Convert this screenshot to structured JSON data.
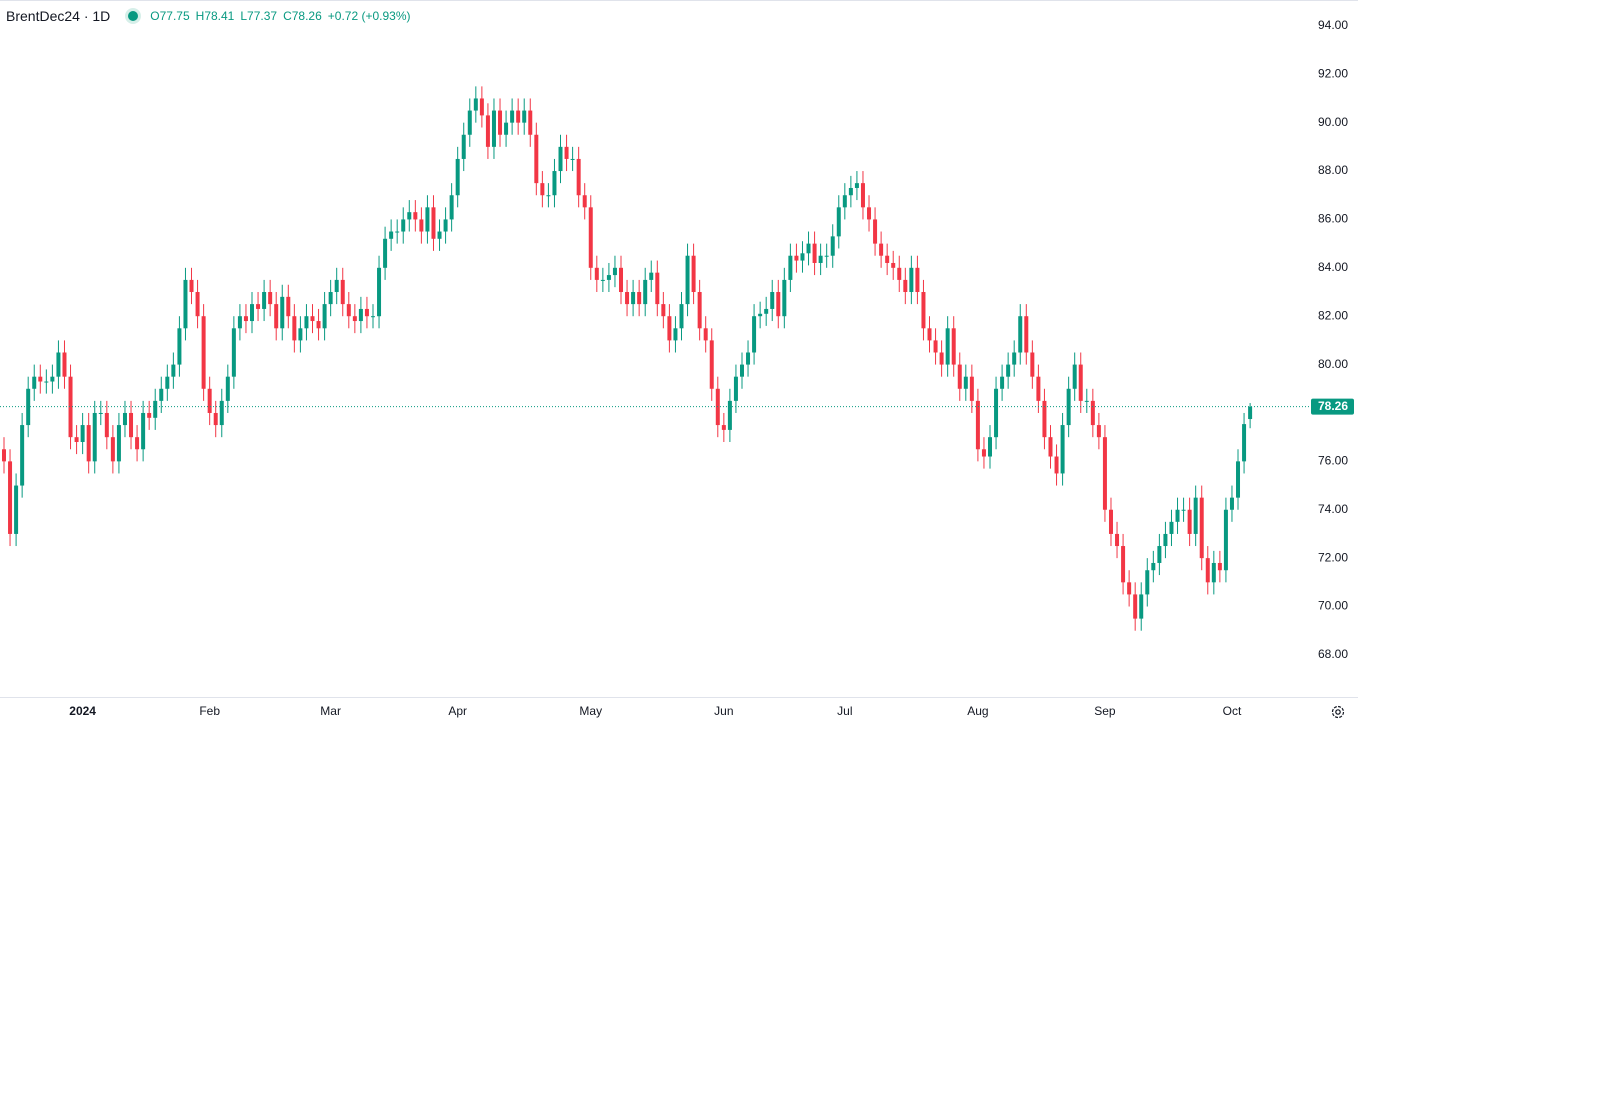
{
  "chart_data": {
    "type": "candlestick",
    "title": "BrentDec24 · 1D",
    "ohlc": [
      "O77.75",
      "H78.41",
      "L77.37",
      "C78.26"
    ],
    "change": "+0.72 (+0.93%)",
    "up_color": "#089981",
    "down_color": "#f23645",
    "last_price": 78.26,
    "ylim": [
      66.26,
      95.07
    ],
    "yticks": [
      {
        "value": 68,
        "label": "68.00"
      },
      {
        "value": 70,
        "label": "70.00"
      },
      {
        "value": 72,
        "label": "72.00"
      },
      {
        "value": 74,
        "label": "74.00"
      },
      {
        "value": 76,
        "label": "76.00"
      },
      {
        "value": 80,
        "label": "80.00"
      },
      {
        "value": 82,
        "label": "82.00"
      },
      {
        "value": 84,
        "label": "84.00"
      },
      {
        "value": 86,
        "label": "86.00"
      },
      {
        "value": 88,
        "label": "88.00"
      },
      {
        "value": 90,
        "label": "90.00"
      },
      {
        "value": 92,
        "label": "92.00"
      },
      {
        "value": 94,
        "label": "94.00"
      }
    ],
    "xlim": [
      -0.66,
      215.9
    ],
    "xticks": [
      {
        "value": 13,
        "label": "2024"
      },
      {
        "value": 34,
        "label": "Feb"
      },
      {
        "value": 54,
        "label": "Mar"
      },
      {
        "value": 75,
        "label": "Apr"
      },
      {
        "value": 97,
        "label": "May"
      },
      {
        "value": 119,
        "label": "Jun"
      },
      {
        "value": 139,
        "label": "Jul"
      },
      {
        "value": 161,
        "label": "Aug"
      },
      {
        "value": 182,
        "label": "Sep"
      },
      {
        "value": 203,
        "label": "Oct"
      }
    ],
    "open": [
      76.5,
      76,
      73,
      75,
      77.5,
      79,
      79.5,
      79.3,
      79.3,
      79.5,
      80.5,
      79.5,
      77,
      76.8,
      77.5,
      76,
      78,
      78,
      77,
      76,
      77.5,
      78,
      77,
      76.5,
      78,
      77.8,
      78.5,
      79,
      79.5,
      80,
      81.5,
      83.5,
      83,
      82,
      79,
      78,
      77.5,
      78.5,
      79.5,
      81.5,
      82,
      81.8,
      82.5,
      82.3,
      83,
      82.5,
      81.5,
      82.8,
      82,
      81,
      81.5,
      82,
      81.8,
      81.5,
      82.5,
      83,
      83.5,
      82.5,
      82,
      81.8,
      82.3,
      82,
      82,
      84,
      85.2,
      85.5,
      85.5,
      86,
      86.3,
      86,
      85.5,
      86.5,
      85.2,
      85.5,
      86,
      87,
      88.5,
      89.5,
      90.5,
      91,
      90.3,
      89,
      90.5,
      89.5,
      90,
      90.5,
      90,
      90.5,
      89.5,
      87.5,
      87,
      87,
      88,
      89,
      88.5,
      88.5,
      87,
      86.5,
      84,
      83.5,
      83.5,
      83.7,
      84,
      83,
      82.5,
      83,
      82.5,
      83.5,
      83.8,
      82.5,
      82,
      81,
      81.5,
      82.5,
      84.5,
      83,
      81.5,
      81,
      79,
      77.5,
      77.3,
      78.5,
      79.5,
      80,
      80.5,
      82,
      82.1,
      82.3,
      83,
      82,
      83.5,
      84.5,
      84.3,
      84.6,
      85,
      84.2,
      84.5,
      84.5,
      85.3,
      86.5,
      87,
      87.3,
      87.5,
      86.5,
      86,
      85,
      84.5,
      84.2,
      84,
      83.5,
      83,
      84,
      83,
      81.5,
      81,
      80.5,
      80,
      81.5,
      80,
      79,
      79.5,
      78.5,
      76.5,
      76.2,
      77,
      79,
      79.5,
      80,
      80.5,
      82,
      80.5,
      79.5,
      78.5,
      77,
      76.2,
      75.5,
      77.5,
      79,
      80,
      78.5,
      78.5,
      77.5,
      77,
      74,
      73,
      72.5,
      71,
      70.5,
      69.5,
      70.5,
      71.5,
      71.8,
      72.5,
      73,
      73.5,
      74,
      74,
      73,
      74.5,
      72,
      71,
      71.8,
      71.5,
      74,
      74.5,
      76,
      77.75
    ],
    "high": [
      77,
      76.5,
      75.5,
      78,
      79.5,
      80,
      80,
      79.8,
      80,
      81,
      81,
      80,
      77.5,
      78,
      78,
      78.5,
      78.5,
      78.5,
      77.5,
      78,
      78.5,
      78.5,
      77.5,
      78.5,
      78.5,
      79,
      79.5,
      80,
      80.5,
      82,
      84,
      84,
      83.5,
      82.5,
      79.5,
      78.5,
      79,
      80,
      82,
      82.5,
      82.5,
      83,
      83,
      83.5,
      83.5,
      83,
      83.3,
      83.3,
      82.5,
      82,
      82.5,
      82.5,
      82.3,
      83,
      83.5,
      84,
      84,
      83,
      82.5,
      82.8,
      82.8,
      82.5,
      84.5,
      85.7,
      86,
      86,
      86.5,
      86.8,
      86.8,
      86.5,
      87,
      87,
      86,
      86.5,
      87.5,
      89,
      90,
      91,
      91.5,
      91.5,
      90.8,
      91,
      91,
      90.5,
      91,
      91,
      91,
      91,
      90,
      88,
      87.5,
      88.5,
      89.5,
      89.5,
      89,
      89,
      87.5,
      87,
      84.5,
      84,
      84.2,
      84.5,
      84.5,
      83.5,
      83.5,
      83.5,
      84,
      84.3,
      84.3,
      83,
      82.5,
      82,
      83,
      85,
      85,
      83.5,
      82,
      81.5,
      79.5,
      78,
      79,
      80,
      80.5,
      81,
      82.5,
      82.6,
      82.8,
      83.5,
      83.5,
      84,
      85,
      85,
      85.1,
      85.5,
      85.5,
      85,
      85,
      85.8,
      87,
      87.5,
      87.8,
      88,
      88,
      87,
      86.5,
      85.5,
      85,
      84.7,
      84.5,
      84,
      84.5,
      84.5,
      83.5,
      82,
      81.5,
      81,
      82,
      82,
      80.5,
      80,
      80,
      79,
      77,
      77.5,
      79.5,
      80,
      80.5,
      81,
      82.5,
      82.5,
      81,
      80,
      79,
      77.5,
      76.7,
      78,
      79.5,
      80.5,
      80.5,
      79,
      79,
      78,
      77.5,
      74.5,
      73.5,
      73,
      71.5,
      71,
      71,
      72,
      72.3,
      73,
      73.5,
      74,
      74.5,
      74.5,
      74.5,
      75,
      75,
      72.5,
      72.3,
      72.3,
      74.5,
      75,
      76.5,
      78,
      78.41
    ],
    "low": [
      75.5,
      72.5,
      72.5,
      74.5,
      77,
      78.5,
      78.8,
      78.8,
      78.8,
      79,
      79,
      76.5,
      76.3,
      76.3,
      75.5,
      75.5,
      77.5,
      76.5,
      75.5,
      75.5,
      77,
      76.5,
      76,
      76,
      77.3,
      77.3,
      78,
      78.5,
      79,
      79.5,
      81,
      82.5,
      81.5,
      78.5,
      77.5,
      77,
      77,
      78,
      79,
      81,
      81.3,
      81.3,
      81.8,
      81.8,
      82,
      81,
      81,
      81.5,
      80.5,
      80.5,
      81,
      81.3,
      81,
      81,
      82,
      82.5,
      82,
      81.5,
      81.3,
      81.3,
      81.5,
      81.5,
      81.5,
      83.5,
      84.7,
      85,
      85,
      85.5,
      85.5,
      85,
      85,
      84.7,
      84.7,
      85,
      85.5,
      86.5,
      88,
      89,
      90,
      89.8,
      88.5,
      88.5,
      89,
      89,
      89.5,
      89.5,
      89.5,
      89,
      87,
      86.5,
      86.5,
      86.5,
      87.5,
      88,
      88,
      86.5,
      86,
      83.5,
      83,
      83,
      83,
      83.2,
      82.5,
      82,
      82,
      82,
      82,
      83,
      82,
      81.5,
      80.5,
      80.5,
      81,
      82,
      82.5,
      81,
      80.5,
      78.5,
      77,
      76.8,
      76.8,
      78,
      79,
      79.5,
      80,
      81.5,
      81.6,
      81.8,
      81.5,
      81.5,
      83,
      83.8,
      83.8,
      84.1,
      83.7,
      83.7,
      84,
      84,
      84.8,
      86,
      86.5,
      86.8,
      86,
      85.5,
      84.5,
      84,
      83.7,
      83.5,
      83,
      82.5,
      82.5,
      82.5,
      81,
      80.5,
      80,
      79.5,
      79.5,
      79.5,
      78.5,
      78.5,
      78,
      76,
      75.7,
      75.7,
      76.5,
      78.5,
      79,
      79.5,
      80,
      80,
      79,
      78,
      76.5,
      75.7,
      75,
      75,
      77,
      78.5,
      78,
      78,
      77,
      76.5,
      73.5,
      72.5,
      72,
      70.5,
      70,
      69,
      69,
      70,
      71,
      71.3,
      72,
      72.5,
      73,
      73.5,
      72.5,
      72.5,
      71.5,
      70.5,
      70.5,
      71,
      71,
      73.5,
      74,
      75.5,
      77.37
    ],
    "close": [
      76,
      73,
      75,
      77.5,
      79,
      79.5,
      79.3,
      79.3,
      79.5,
      80.5,
      79.5,
      77,
      76.8,
      77.5,
      76,
      78,
      78,
      77,
      76,
      77.5,
      78,
      77,
      76.5,
      78,
      77.8,
      78.5,
      79,
      79.5,
      80,
      81.5,
      83.5,
      83,
      82,
      79,
      78,
      77.5,
      78.5,
      79.5,
      81.5,
      82,
      81.8,
      82.5,
      82.3,
      83,
      82.5,
      81.5,
      82.8,
      82,
      81,
      81.5,
      82,
      81.8,
      81.5,
      82.5,
      83,
      83.5,
      82.5,
      82,
      81.8,
      82.3,
      82,
      82,
      84,
      85.2,
      85.5,
      85.5,
      86,
      86.3,
      86,
      85.5,
      86.5,
      85.2,
      85.5,
      86,
      87,
      88.5,
      89.5,
      90.5,
      91,
      90.3,
      89,
      90.5,
      89.5,
      90,
      90.5,
      90,
      90.5,
      89.5,
      87.5,
      87,
      87,
      88,
      89,
      88.5,
      88.5,
      87,
      86.5,
      84,
      83.5,
      83.5,
      83.7,
      84,
      83,
      82.5,
      83,
      82.5,
      83.5,
      83.8,
      82.5,
      82,
      81,
      81.5,
      82.5,
      84.5,
      83,
      81.5,
      81,
      79,
      77.5,
      77.3,
      78.5,
      79.5,
      80,
      80.5,
      82,
      82.1,
      82.3,
      83,
      82,
      83.5,
      84.5,
      84.3,
      84.6,
      85,
      84.2,
      84.5,
      84.5,
      85.3,
      86.5,
      87,
      87.3,
      87.5,
      86.5,
      86,
      85,
      84.5,
      84.2,
      84,
      83.5,
      83,
      84,
      83,
      81.5,
      81,
      80.5,
      80,
      81.5,
      80,
      79,
      79.5,
      78.5,
      76.5,
      76.2,
      77,
      79,
      79.5,
      80,
      80.5,
      82,
      80.5,
      79.5,
      78.5,
      77,
      76.2,
      75.5,
      77.5,
      79,
      80,
      78.5,
      78.5,
      77.5,
      77,
      74,
      73,
      72.5,
      71,
      70.5,
      69.5,
      70.5,
      71.5,
      71.8,
      72.5,
      73,
      73.5,
      74,
      74,
      73,
      74.5,
      72,
      71,
      71.8,
      71.5,
      74,
      74.5,
      76,
      77.54,
      78.26
    ]
  }
}
